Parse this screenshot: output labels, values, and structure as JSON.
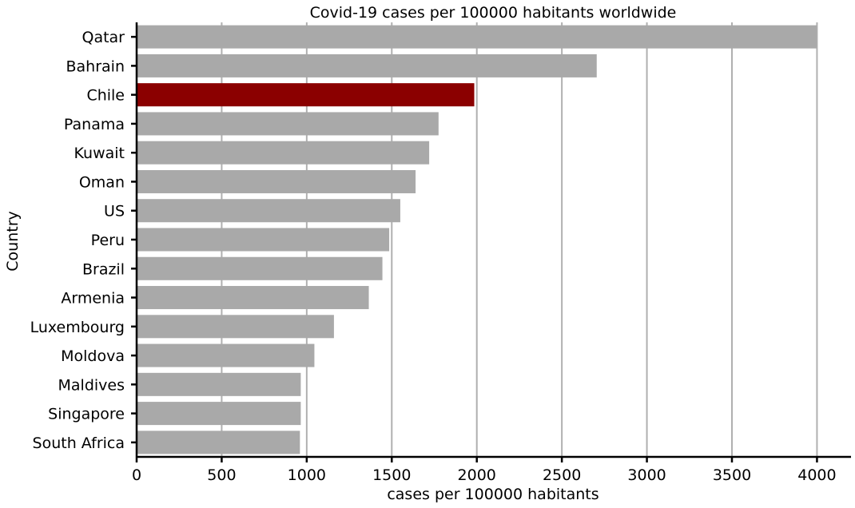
{
  "chart_data": {
    "type": "bar",
    "orientation": "horizontal",
    "title": "Covid-19 cases per 100000 habitants worldwide",
    "xlabel": "cases per 100000 habitants",
    "ylabel": "Country",
    "categories": [
      "Qatar",
      "Bahrain",
      "Chile",
      "Panama",
      "Kuwait",
      "Oman",
      "US",
      "Peru",
      "Brazil",
      "Armenia",
      "Luxembourg",
      "Moldova",
      "Maldives",
      "Singapore",
      "South Africa"
    ],
    "values": [
      4000,
      2705,
      1985,
      1775,
      1720,
      1640,
      1550,
      1485,
      1445,
      1365,
      1160,
      1045,
      965,
      965,
      960
    ],
    "highlight": "Chile",
    "xlim": [
      0,
      4200
    ],
    "xticks": [
      0,
      500,
      1000,
      1500,
      2000,
      2500,
      3000,
      3500,
      4000
    ],
    "xtick_labels": [
      "0",
      "500",
      "1000",
      "1500",
      "2000",
      "2500",
      "3000",
      "3500",
      "4000"
    ],
    "grid": "vertical",
    "legend": "none",
    "colors": {
      "bar": "#a9a9a9",
      "highlight": "#8b0000",
      "grid": "#b0b0b0"
    }
  }
}
